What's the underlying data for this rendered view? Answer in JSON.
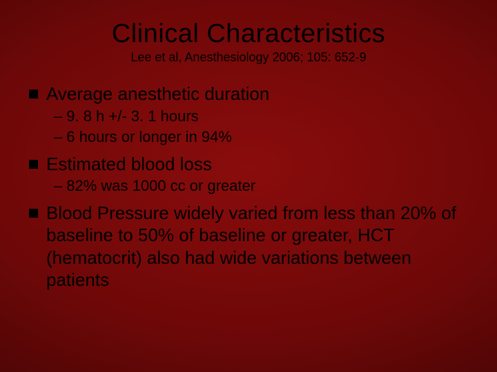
{
  "slide": {
    "title": "Clinical Characteristics",
    "subtitle": "Lee et al, Anesthesiology 2006; 105: 652-9",
    "bullets": [
      {
        "text": "Average anesthetic duration",
        "sub": [
          "9. 8 h +/- 3. 1 hours",
          "6 hours or longer in 94%"
        ]
      },
      {
        "text": "Estimated blood loss",
        "sub": [
          "82% was 1000 cc or greater"
        ]
      },
      {
        "text": "Blood Pressure widely varied from less than 20% of baseline to  50% of baseline or greater, HCT (hematocrit) also had wide variations between patients",
        "sub": []
      }
    ]
  },
  "style": {
    "background_gradient": [
      "#8a0c0c",
      "#6e0808",
      "#4a0505",
      "#2a0202"
    ],
    "text_color": "#000000",
    "title_fontsize": 38,
    "subtitle_fontsize": 18,
    "l1_fontsize": 26,
    "l2_fontsize": 22,
    "bullet_square_size": 13,
    "bullet_square_color": "#000000",
    "font_family": "Verdana"
  }
}
